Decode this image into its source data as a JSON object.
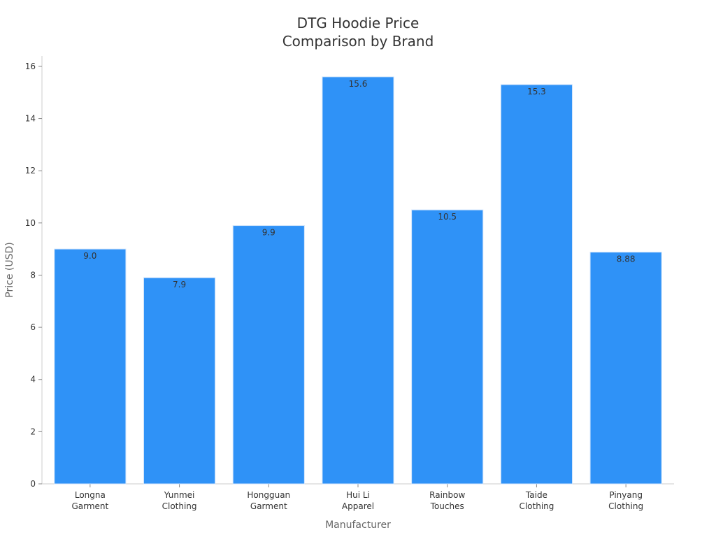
{
  "chart_data": {
    "type": "bar",
    "title": [
      "DTG Hoodie Price",
      "Comparison by Brand"
    ],
    "xlabel": "Manufacturer",
    "ylabel": "Price (USD)",
    "categories": [
      [
        "Longna",
        "Garment"
      ],
      [
        "Yunmei",
        "Clothing"
      ],
      [
        "Hongguan",
        "Garment"
      ],
      [
        "Hui Li",
        "Apparel"
      ],
      [
        "Rainbow",
        "Touches"
      ],
      [
        "Taide",
        "Clothing"
      ],
      [
        "Pinyang",
        "Clothing"
      ]
    ],
    "values": [
      9.0,
      7.9,
      9.9,
      15.6,
      10.5,
      15.3,
      8.88
    ],
    "value_labels": [
      "9.0",
      "7.9",
      "9.9",
      "15.6",
      "10.5",
      "15.3",
      "8.88"
    ],
    "ylim": [
      0,
      16.4
    ],
    "yticks": [
      0,
      2,
      4,
      6,
      8,
      10,
      12,
      14,
      16
    ],
    "grid": false,
    "legend": "none",
    "colors": {
      "bar": "#2f92f7",
      "bar_edge": "#d0e4fb",
      "axis": "#cccccc",
      "text": "#333333",
      "axis_title": "#666666"
    }
  }
}
